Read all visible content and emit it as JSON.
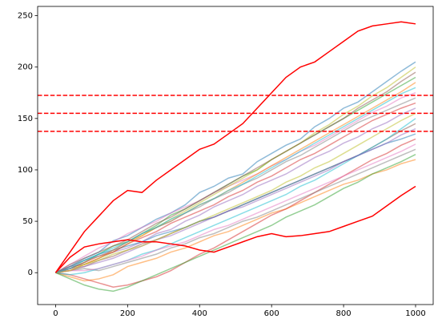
{
  "chart_data": {
    "type": "line",
    "x": [
      0,
      40,
      80,
      120,
      160,
      200,
      240,
      280,
      320,
      360,
      400,
      440,
      480,
      520,
      560,
      600,
      640,
      680,
      720,
      760,
      800,
      840,
      880,
      920,
      960,
      1000
    ],
    "xlim": [
      -49.95,
      1048.95
    ],
    "xticks": [
      0,
      200,
      400,
      600,
      800,
      1000
    ],
    "ylim": [
      -31,
      259
    ],
    "yticks": [
      0,
      50,
      100,
      150,
      200,
      250
    ],
    "series": [
      {
        "color": "#1f77b4",
        "alpha": 0.5,
        "values": [
          0,
          6,
          14,
          20,
          31,
          36,
          44,
          52,
          58,
          66,
          78,
          84,
          92,
          96,
          108,
          116,
          124,
          130,
          142,
          150,
          160,
          166,
          176,
          186,
          196,
          205
        ]
      },
      {
        "color": "#ff7f0e",
        "alpha": 0.5,
        "values": [
          0,
          -4,
          -8,
          -6,
          -2,
          6,
          10,
          14,
          20,
          24,
          30,
          36,
          40,
          46,
          52,
          58,
          62,
          68,
          74,
          80,
          86,
          90,
          96,
          100,
          106,
          110
        ]
      },
      {
        "color": "#2ca02c",
        "alpha": 0.5,
        "values": [
          0,
          4,
          10,
          18,
          26,
          30,
          38,
          46,
          56,
          62,
          70,
          78,
          86,
          94,
          100,
          110,
          118,
          126,
          134,
          142,
          150,
          158,
          166,
          174,
          182,
          190
        ]
      },
      {
        "color": "#d62728",
        "alpha": 0.5,
        "values": [
          0,
          -2,
          -6,
          -10,
          -14,
          -12,
          -8,
          -4,
          2,
          10,
          18,
          24,
          32,
          40,
          48,
          56,
          62,
          70,
          78,
          86,
          94,
          102,
          110,
          116,
          124,
          130
        ]
      },
      {
        "color": "#9467bd",
        "alpha": 0.5,
        "values": [
          0,
          6,
          8,
          14,
          20,
          24,
          30,
          38,
          42,
          50,
          56,
          64,
          70,
          76,
          84,
          90,
          96,
          104,
          112,
          118,
          126,
          132,
          140,
          146,
          154,
          160
        ]
      },
      {
        "color": "#8c564b",
        "alpha": 0.5,
        "values": [
          0,
          2,
          6,
          12,
          16,
          22,
          28,
          32,
          38,
          44,
          50,
          54,
          60,
          66,
          72,
          78,
          84,
          90,
          96,
          102,
          108,
          114,
          122,
          130,
          138,
          145
        ]
      },
      {
        "color": "#e377c2",
        "alpha": 0.5,
        "values": [
          0,
          8,
          16,
          24,
          30,
          38,
          44,
          50,
          58,
          64,
          70,
          78,
          84,
          90,
          96,
          104,
          110,
          118,
          124,
          132,
          140,
          148,
          156,
          162,
          170,
          175
        ]
      },
      {
        "color": "#7f7f7f",
        "alpha": 0.5,
        "values": [
          0,
          2,
          4,
          2,
          6,
          10,
          14,
          18,
          24,
          28,
          34,
          38,
          44,
          50,
          54,
          60,
          66,
          72,
          78,
          84,
          90,
          96,
          102,
          108,
          114,
          120
        ]
      },
      {
        "color": "#bcbd22",
        "alpha": 0.5,
        "values": [
          0,
          4,
          8,
          14,
          20,
          28,
          36,
          44,
          52,
          60,
          68,
          76,
          84,
          92,
          100,
          110,
          118,
          126,
          136,
          144,
          154,
          162,
          172,
          180,
          190,
          200
        ]
      },
      {
        "color": "#17becf",
        "alpha": 0.5,
        "values": [
          0,
          -2,
          0,
          4,
          8,
          12,
          18,
          22,
          28,
          34,
          40,
          46,
          52,
          58,
          64,
          70,
          76,
          84,
          90,
          98,
          106,
          114,
          122,
          130,
          140,
          150
        ]
      },
      {
        "color": "#1f77b4",
        "alpha": 0.5,
        "values": [
          0,
          6,
          12,
          18,
          22,
          26,
          30,
          36,
          40,
          44,
          50,
          54,
          60,
          66,
          72,
          78,
          84,
          90,
          96,
          102,
          108,
          114,
          120,
          126,
          130,
          135
        ]
      },
      {
        "color": "#ff7f0e",
        "alpha": 0.5,
        "values": [
          0,
          2,
          8,
          14,
          22,
          30,
          36,
          44,
          50,
          58,
          66,
          72,
          80,
          88,
          96,
          104,
          112,
          120,
          128,
          136,
          144,
          152,
          160,
          168,
          176,
          185
        ]
      },
      {
        "color": "#2ca02c",
        "alpha": 0.5,
        "values": [
          0,
          -6,
          -12,
          -16,
          -18,
          -14,
          -8,
          -2,
          4,
          10,
          16,
          22,
          28,
          34,
          40,
          46,
          54,
          60,
          66,
          74,
          82,
          88,
          96,
          102,
          108,
          115
        ]
      },
      {
        "color": "#d62728",
        "alpha": 0.5,
        "values": [
          0,
          4,
          10,
          16,
          20,
          28,
          34,
          40,
          48,
          54,
          60,
          66,
          74,
          80,
          88,
          94,
          102,
          110,
          116,
          124,
          132,
          140,
          148,
          154,
          160,
          165
        ]
      },
      {
        "color": "#9467bd",
        "alpha": 0.5,
        "values": [
          0,
          4,
          6,
          10,
          14,
          20,
          26,
          32,
          36,
          42,
          48,
          54,
          60,
          64,
          70,
          76,
          82,
          88,
          94,
          100,
          108,
          114,
          120,
          126,
          134,
          140
        ]
      },
      {
        "color": "#8c564b",
        "alpha": 0.5,
        "values": [
          0,
          8,
          14,
          20,
          26,
          32,
          40,
          48,
          54,
          62,
          70,
          78,
          86,
          94,
          102,
          110,
          118,
          126,
          134,
          142,
          150,
          160,
          168,
          176,
          186,
          195
        ]
      },
      {
        "color": "#e377c2",
        "alpha": 0.5,
        "values": [
          0,
          2,
          2,
          4,
          8,
          12,
          16,
          22,
          26,
          30,
          36,
          42,
          46,
          52,
          58,
          64,
          70,
          76,
          82,
          88,
          94,
          100,
          106,
          112,
          118,
          125
        ]
      },
      {
        "color": "#7f7f7f",
        "alpha": 0.5,
        "values": [
          0,
          6,
          12,
          16,
          22,
          30,
          38,
          44,
          50,
          58,
          64,
          72,
          78,
          86,
          92,
          100,
          108,
          114,
          122,
          130,
          138,
          146,
          152,
          158,
          164,
          170
        ]
      },
      {
        "color": "#bcbd22",
        "alpha": 0.5,
        "values": [
          0,
          2,
          8,
          12,
          18,
          22,
          26,
          32,
          38,
          44,
          50,
          56,
          62,
          68,
          74,
          80,
          88,
          94,
          102,
          108,
          116,
          124,
          132,
          140,
          148,
          155
        ]
      },
      {
        "color": "#17becf",
        "alpha": 0.5,
        "values": [
          0,
          4,
          12,
          18,
          24,
          30,
          38,
          44,
          52,
          58,
          66,
          72,
          80,
          86,
          94,
          102,
          110,
          118,
          126,
          134,
          142,
          150,
          158,
          166,
          174,
          180
        ]
      },
      {
        "color": "#ff0000",
        "alpha": 1,
        "values": [
          0,
          20,
          40,
          55,
          70,
          80,
          78,
          90,
          100,
          110,
          120,
          125,
          135,
          145,
          160,
          175,
          190,
          200,
          205,
          215,
          225,
          235,
          240,
          242,
          244,
          242
        ]
      },
      {
        "color": "#ff0000",
        "alpha": 1,
        "values": [
          0,
          15,
          25,
          28,
          30,
          32,
          30,
          30,
          28,
          26,
          22,
          20,
          25,
          30,
          35,
          38,
          35,
          36,
          38,
          40,
          45,
          50,
          55,
          65,
          75,
          84
        ]
      }
    ],
    "hlines": [
      172.5,
      155,
      137.5
    ],
    "hline_color": "#ff0000",
    "hline_style": "dashed"
  }
}
